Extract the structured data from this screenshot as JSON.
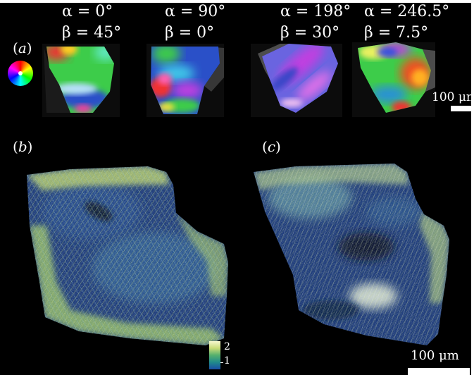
{
  "panel_a": {
    "label_paren_open": "(",
    "label_letter": "a",
    "label_paren_close": ")",
    "views": [
      {
        "alpha": "α  = 0°",
        "beta": "β  = 45°"
      },
      {
        "alpha": "α  = 90°",
        "beta": "β  = 0°"
      },
      {
        "alpha": "α  = 198°",
        "beta": "β  = 30°"
      },
      {
        "alpha": "α  = 246.5°",
        "beta": "β  = 7.5°"
      }
    ],
    "scale_label": "100 μm"
  },
  "panel_b": {
    "label_paren_open": "(",
    "label_letter": "b",
    "label_paren_close": ")"
  },
  "panel_c": {
    "label_paren_open": "(",
    "label_letter": "c",
    "label_paren_close": ")"
  },
  "colorbar": {
    "tick_high": "2",
    "tick_low": "1",
    "colors": [
      "#f8f8d0",
      "#c8dc78",
      "#55b06e",
      "#208a8c",
      "#1a4ca6"
    ]
  },
  "scale_label_bottom": "100 μm",
  "palette": {
    "background": "#000000",
    "glyph_green": "#3dcc4a",
    "glyph_blue": "#2a50c8",
    "glyph_red": "#f03030",
    "glyph_magenta": "#c040e0",
    "vector_blue": "#1e3f8c",
    "vector_yellow": "#c8d86e"
  }
}
